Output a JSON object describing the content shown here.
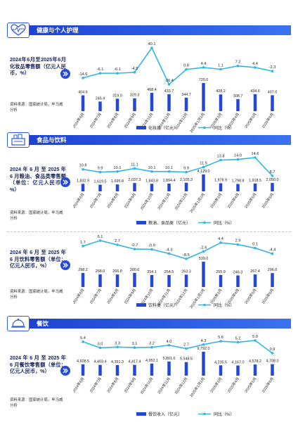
{
  "colors": {
    "bar": "#2348d8",
    "line": "#33b5e6",
    "header": "#2b59e0",
    "text_dark": "#1a2560"
  },
  "sections": {
    "health": {
      "title": "健康与个人护理",
      "icon": "health-heart-icon"
    },
    "food": {
      "title": "食品与饮料",
      "icon": "food-basket-icon"
    },
    "dining": {
      "title": "餐饮",
      "icon": "dining-cloche-icon"
    }
  },
  "chart_data": [
    {
      "type": "bar",
      "description": "2024年6月至2025年6月化妆品零售额（亿元人民币，%）",
      "source": "资料来源：国家统计局，毕马威分析",
      "categories": [
        "2024年6月",
        "2024年7月",
        "2024年8月",
        "2024年9月",
        "2024年10月",
        "2024年11月",
        "2024年12月",
        "2025年1月2月",
        "2025年3月",
        "2025年4月",
        "2025年5月",
        "2025年6月"
      ],
      "series": [
        {
          "name": "化妆品（亿元）",
          "kind": "bar",
          "values": [
            404.6,
            245.4,
            319.0,
            329.3,
            468.4,
            433.7,
            344.7,
            720.0,
            428.2,
            308.7,
            434.6,
            407.0
          ],
          "labels": [
            "404.6",
            "245.4",
            "319.0",
            "329.3",
            "468.4",
            "433.7",
            "344.7",
            "720.0",
            "428.2",
            "308.7",
            "434.6",
            "407.0"
          ]
        },
        {
          "name": "同比（%）",
          "kind": "line",
          "values": [
            -14.6,
            -6.1,
            -6.1,
            -4.5,
            40.1,
            -26.4,
            0.8,
            4.4,
            1.1,
            7.2,
            4.4,
            -2.3
          ],
          "labels": [
            "-14.6",
            "-6.1",
            "-6.1",
            "-4.5",
            "40.1",
            "-26.4",
            "0.8",
            "4.4",
            "1.1",
            "7.2",
            "4.4",
            "-2.3"
          ]
        }
      ]
    },
    {
      "type": "bar",
      "description": "2024 年 6 月 至 2025 年 6 月粮油、食品类零售额（单位：亿元人民币，%）",
      "source": "资料来源：国家统计局，毕马威分析",
      "categories": [
        "2024年6月",
        "2024年7月",
        "2024年8月",
        "2024年9月",
        "2024年10月",
        "2024年11月",
        "2024年12月",
        "2025年1月2月",
        "2025年3月",
        "2025年4月",
        "2025年5月",
        "2025年6月"
      ],
      "series": [
        {
          "name": "粮油、食品类（亿元）",
          "kind": "bar",
          "values": [
            1832.9,
            1619.5,
            1695.8,
            2037.3,
            1843.8,
            1894.4,
            2105.3,
            4129.0,
            1978.9,
            1798.8,
            1918.5,
            2050.0
          ],
          "labels": [
            "1,832.9",
            "1,619.5",
            "1,695.8",
            "2,037.3",
            "1,843.8",
            "1,894.4",
            "2,105.3",
            "4,129.0",
            "1,978.9",
            "1,798.8",
            "1,918.5",
            "2,050.0"
          ]
        },
        {
          "name": "同比（%）",
          "kind": "line",
          "values": [
            10.8,
            9.9,
            10.1,
            11.1,
            10.1,
            10.1,
            9.9,
            11.5,
            13.8,
            14.0,
            14.6,
            8.7
          ],
          "labels": [
            "10.8",
            "9.9",
            "10.1",
            "11.1",
            "10.1",
            "10.1",
            "9.9",
            "11.5",
            "13.8",
            "14.0",
            "14.6",
            "8.7"
          ]
        }
      ]
    },
    {
      "type": "bar",
      "description": "2024 年 6 月 至 2025 年 6 月饮料零售额（单位：亿元人民币，%）",
      "source": "资料来源：国家统计局，毕马威分析",
      "categories": [
        "2024年6月",
        "2024年7月",
        "2024年8月",
        "2024年9月",
        "2024年10月",
        "2024年11月",
        "2024年12月",
        "2025年1月2月",
        "2025年3月",
        "2025年4月",
        "2025年5月",
        "2025年6月"
      ],
      "series": [
        {
          "name": "饮料类（亿元）",
          "kind": "bar",
          "values": [
            298.2,
            268.0,
            266.8,
            300.6,
            254.1,
            254.5,
            263.3,
            539.0,
            255.9,
            246.3,
            267.4,
            296.0
          ],
          "labels": [
            "298.2",
            "268.0",
            "266.8",
            "300.6",
            "254.1",
            "254.5",
            "263.3",
            "539.0",
            "255.9",
            "246.3",
            "267.4",
            "296.0"
          ]
        },
        {
          "name": "同比（%）",
          "kind": "line",
          "values": [
            1.7,
            6.1,
            2.7,
            -0.7,
            -0.9,
            -4.3,
            -8.5,
            -2.6,
            4.4,
            2.9,
            0.1,
            -4.4
          ],
          "labels": [
            "1.7",
            "6.1",
            "2.7",
            "-0.7",
            "-0.9",
            "-4.3",
            "-8.5",
            "-2.6",
            "4.4",
            "2.9",
            "0.1",
            "-4.4"
          ]
        }
      ]
    },
    {
      "type": "bar",
      "description": "2024 年 6 月 至 2025 年 6 月餐饮零售额（单位：亿元人民币，%）",
      "source": "资料来源：国家统计局，毕马威分析",
      "categories": [
        "2024年6月",
        "2024年7月",
        "2024年8月",
        "2024年9月",
        "2024年10月",
        "2024年11月",
        "2024年12月",
        "2025年1月2月",
        "2025年3月",
        "2025年4月",
        "2025年5月",
        "2025年6月"
      ],
      "series": [
        {
          "name": "餐饮收入（亿元）",
          "kind": "bar",
          "values": [
            4608.5,
            4403.4,
            4351.3,
            4417.4,
            4952.1,
            5801.6,
            5548.5,
            9792.0,
            4235.5,
            4167.0,
            4578.2,
            4708.0
          ],
          "labels": [
            "4,608.5",
            "4,403.4",
            "4,351.3",
            "4,417.4",
            "4,952.1",
            "5,801.6",
            "5,548.5",
            "9,792.0",
            "4,235.5",
            "4,167.0",
            "4,578.2",
            "4,708.0"
          ]
        },
        {
          "name": "同比（%）",
          "kind": "line",
          "values": [
            5.4,
            3.0,
            3.3,
            3.1,
            3.2,
            4.0,
            2.7,
            4.3,
            5.6,
            5.2,
            5.9,
            0.9
          ],
          "labels": [
            "5.4",
            "3.0",
            "3.3",
            "3.1",
            "3.2",
            "4.0",
            "2.7",
            "4.3",
            "5.6",
            "5.2",
            "5.9",
            "0.9"
          ]
        }
      ]
    }
  ]
}
